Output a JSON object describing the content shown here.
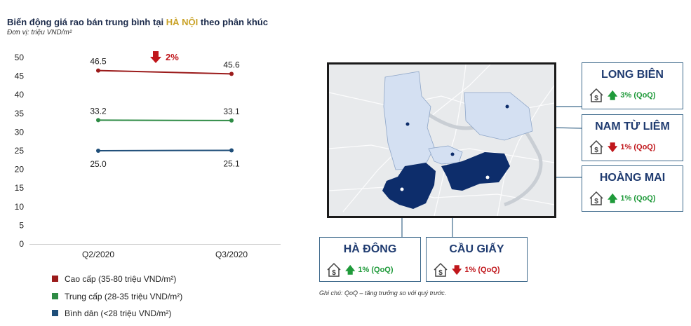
{
  "title": {
    "before": "Biến động giá rao bán trung bình tại ",
    "highlight": "HÀ NỘI",
    "after": " theo phân khúc"
  },
  "subtitle": "Đơn vị: triệu VND/m²",
  "colors": {
    "cao_cap": "#9b1b1b",
    "trung_cap": "#2e8b45",
    "binh_dan": "#1f4e79",
    "region": "#0d2d6b",
    "region_light": "#d4e0f2",
    "up": "#1f9a3a",
    "down": "#c0161b"
  },
  "chart_data": {
    "type": "line",
    "categories": [
      "Q2/2020",
      "Q3/2020"
    ],
    "ylim": [
      0,
      50
    ],
    "yticks": [
      "0",
      "5",
      "10",
      "15",
      "20",
      "25",
      "30",
      "35",
      "40",
      "45",
      "50"
    ],
    "series": [
      {
        "name": "Cao cấp (35-80 triệu VND/m²)",
        "values": [
          46.5,
          45.6
        ],
        "labels": [
          "46.5",
          "45.6"
        ],
        "color": "#9b1b1b"
      },
      {
        "name": "Trung cấp (28-35 triệu VND/m²)",
        "values": [
          33.2,
          33.1
        ],
        "labels": [
          "33.2",
          "33.1"
        ],
        "color": "#2e8b45"
      },
      {
        "name": "Bình dân (<28 triệu VND/m²)",
        "values": [
          25.0,
          25.1
        ],
        "labels": [
          "25.0",
          "25.1"
        ],
        "color": "#1f4e79"
      }
    ],
    "annotation": {
      "text": "2%",
      "direction": "down"
    }
  },
  "districts": [
    {
      "name": "LONG BIÊN",
      "change": "3% (QoQ)",
      "direction": "up"
    },
    {
      "name": "NAM TỪ LIÊM",
      "change": "1% (QoQ)",
      "direction": "down"
    },
    {
      "name": "HOÀNG MAI",
      "change": "1% (QoQ)",
      "direction": "up"
    },
    {
      "name": "HÀ ĐÔNG",
      "change": "1% (QoQ)",
      "direction": "up"
    },
    {
      "name": "CẦU GIẤY",
      "change": "1% (QoQ)",
      "direction": "down"
    }
  ],
  "arrows": {
    "up": "🡅",
    "down": "🡇"
  },
  "note": "Ghi chú: QoQ – tăng trưởng so với quý trước."
}
